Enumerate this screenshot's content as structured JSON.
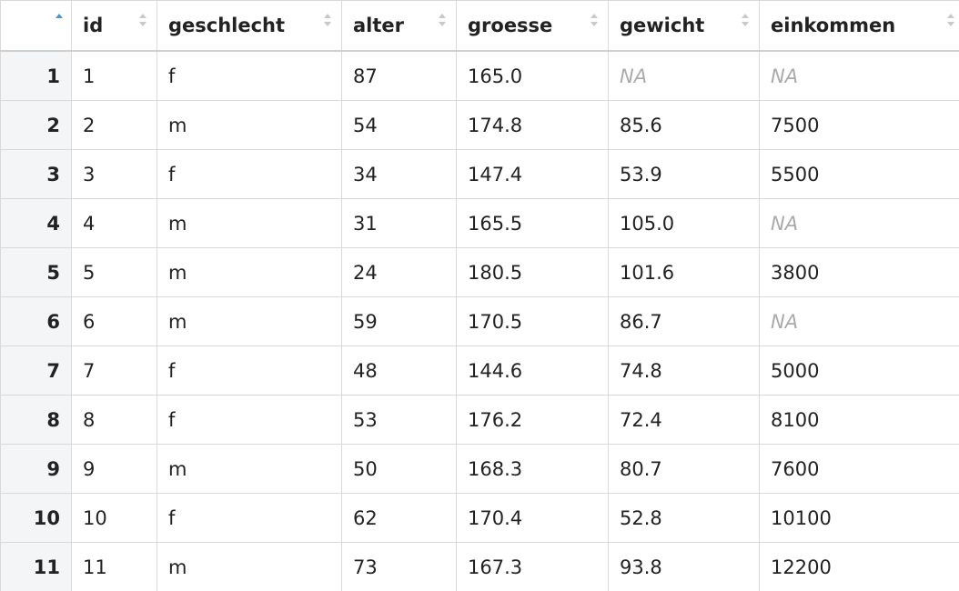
{
  "table": {
    "columns": [
      "id",
      "geschlecht",
      "alter",
      "groesse",
      "gewicht",
      "einkommen"
    ],
    "row_names": [
      "1",
      "2",
      "3",
      "4",
      "5",
      "6",
      "7",
      "8",
      "9",
      "10",
      "11"
    ],
    "rows": [
      [
        "1",
        "f",
        "87",
        "165.0",
        "NA",
        "NA"
      ],
      [
        "2",
        "m",
        "54",
        "174.8",
        "85.6",
        "7500"
      ],
      [
        "3",
        "f",
        "34",
        "147.4",
        "53.9",
        "5500"
      ],
      [
        "4",
        "m",
        "31",
        "165.5",
        "105.0",
        "NA"
      ],
      [
        "5",
        "m",
        "24",
        "180.5",
        "101.6",
        "3800"
      ],
      [
        "6",
        "m",
        "59",
        "170.5",
        "86.7",
        "NA"
      ],
      [
        "7",
        "f",
        "48",
        "144.6",
        "74.8",
        "5000"
      ],
      [
        "8",
        "f",
        "53",
        "176.2",
        "72.4",
        "8100"
      ],
      [
        "9",
        "m",
        "50",
        "168.3",
        "80.7",
        "7600"
      ],
      [
        "10",
        "f",
        "62",
        "170.4",
        "52.8",
        "10100"
      ],
      [
        "11",
        "m",
        "73",
        "167.3",
        "93.8",
        "12200"
      ]
    ]
  }
}
